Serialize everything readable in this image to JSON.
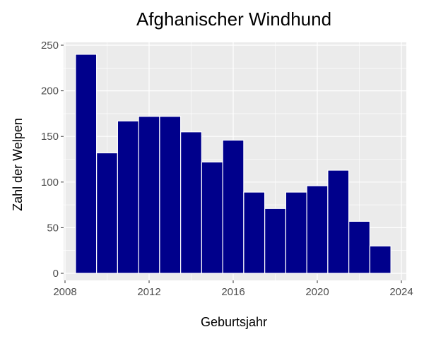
{
  "chart_data": {
    "type": "bar",
    "title": "Afghanischer Windhund",
    "xlabel": "Geburtsjahr",
    "ylabel": "Zahl der Welpen",
    "x": [
      2009,
      2010,
      2011,
      2012,
      2013,
      2014,
      2015,
      2016,
      2017,
      2018,
      2019,
      2020,
      2021,
      2022,
      2023
    ],
    "values": [
      240,
      132,
      167,
      172,
      172,
      155,
      122,
      146,
      89,
      71,
      89,
      96,
      113,
      57,
      30
    ],
    "xlim": [
      2008,
      2024
    ],
    "ylim": [
      0,
      250
    ],
    "xticks": [
      2008,
      2012,
      2016,
      2020,
      2024
    ],
    "yticks": [
      0,
      50,
      100,
      150,
      200,
      250
    ],
    "bar_color": "#00008b",
    "panel_color": "#ebebeb",
    "grid_color": "#ffffff",
    "grid": true
  }
}
